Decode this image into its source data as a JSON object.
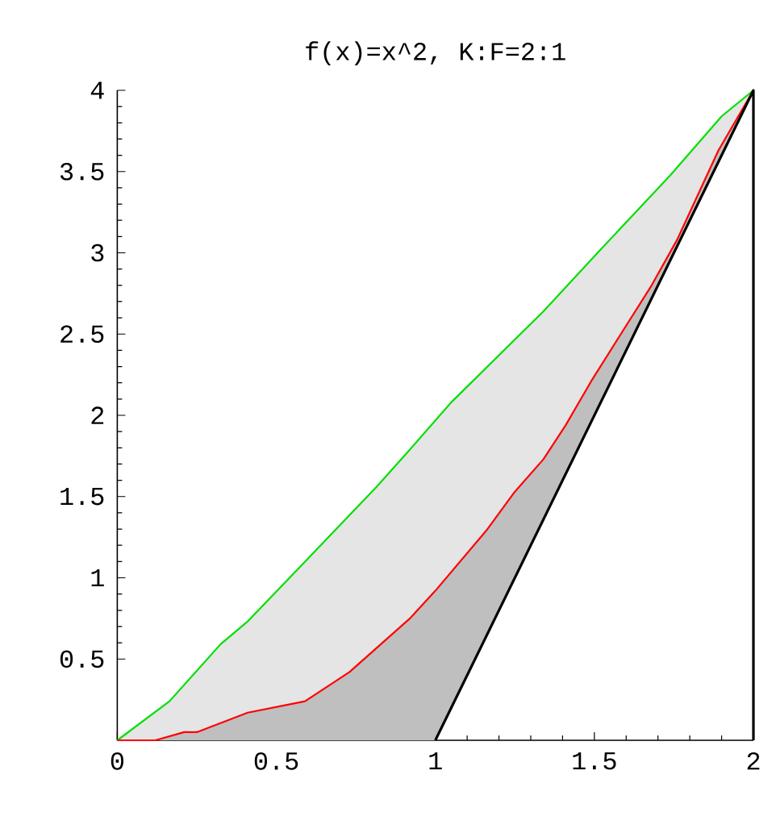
{
  "chart_data": {
    "type": "line",
    "title": "f(x)=x^2, K:F=2:1",
    "series": [
      {
        "color": "#00e000",
        "x": [
          0,
          0.164,
          0.324,
          0.409,
          0.586,
          0.815,
          0.916,
          1.05,
          1.34,
          1.51,
          1.74,
          1.9,
          2
        ],
        "values": [
          0,
          0.24,
          0.59,
          0.73,
          1.09,
          1.56,
          1.78,
          2.08,
          2.64,
          3.0,
          3.48,
          3.84,
          4
        ]
      },
      {
        "color": "#ff0000",
        "x": [
          0,
          0.12,
          0.21,
          0.25,
          0.41,
          0.59,
          0.73,
          0.92,
          1.0,
          1.16,
          1.25,
          1.34,
          1.41,
          1.49,
          1.58,
          1.68,
          1.76,
          1.89,
          2
        ],
        "values": [
          0,
          0,
          0.05,
          0.05,
          0.17,
          0.24,
          0.42,
          0.75,
          0.92,
          1.29,
          1.53,
          1.73,
          1.94,
          2.21,
          2.49,
          2.8,
          3.08,
          3.63,
          4
        ]
      },
      {
        "color": "#000000",
        "x": [
          2,
          2,
          1
        ],
        "values": [
          0,
          4,
          0
        ]
      }
    ],
    "xlim": [
      0,
      2
    ],
    "ylim": [
      0,
      4
    ],
    "xticks": [
      0,
      0.5,
      1,
      1.5,
      2
    ],
    "yticks": [
      0.5,
      1,
      1.5,
      2,
      2.5,
      3,
      3.5,
      4
    ],
    "grid": false
  }
}
